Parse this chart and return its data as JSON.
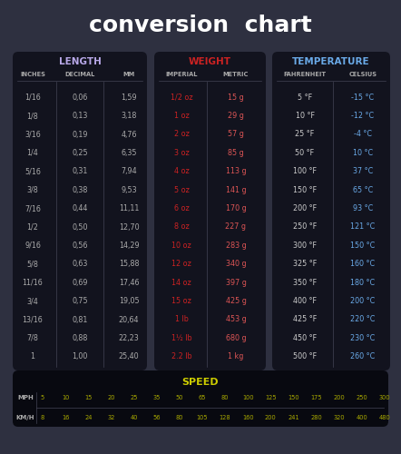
{
  "title": "conversion  chart",
  "bg_color": "#2e3040",
  "panel_color": "#12131e",
  "title_color": "#ffffff",
  "title_fontsize": 18,
  "length_title": "LENGTH",
  "length_title_color": "#b8a8e8",
  "length_cols": [
    "INCHES",
    "DECIMAL",
    "MM"
  ],
  "length_data": [
    [
      "1/16",
      "0,06",
      "1,59"
    ],
    [
      "1/8",
      "0,13",
      "3,18"
    ],
    [
      "3/16",
      "0,19",
      "4,76"
    ],
    [
      "1/4",
      "0,25",
      "6,35"
    ],
    [
      "5/16",
      "0,31",
      "7,94"
    ],
    [
      "3/8",
      "0,38",
      "9,53"
    ],
    [
      "7/16",
      "0,44",
      "11,11"
    ],
    [
      "1/2",
      "0,50",
      "12,70"
    ],
    [
      "9/16",
      "0,56",
      "14,29"
    ],
    [
      "5/8",
      "0,63",
      "15,88"
    ],
    [
      "11/16",
      "0,69",
      "17,46"
    ],
    [
      "3/4",
      "0,75",
      "19,05"
    ],
    [
      "13/16",
      "0,81",
      "20,64"
    ],
    [
      "7/8",
      "0,88",
      "22,23"
    ],
    [
      "1",
      "1,00",
      "25,40"
    ]
  ],
  "weight_title": "WEIGHT",
  "weight_title_color": "#cc2222",
  "weight_cols": [
    "IMPERIAL",
    "METRIC"
  ],
  "weight_imperial_color": "#cc2222",
  "weight_metric_color": "#cc3333",
  "weight_metric_bright": "#dd5555",
  "weight_data": [
    [
      "1/2 oz",
      "15 g"
    ],
    [
      "1 oz",
      "29 g"
    ],
    [
      "2 oz",
      "57 g"
    ],
    [
      "3 oz",
      "85 g"
    ],
    [
      "4 oz",
      "113 g"
    ],
    [
      "5 oz",
      "141 g"
    ],
    [
      "6 oz",
      "170 g"
    ],
    [
      "8 oz",
      "227 g"
    ],
    [
      "10 oz",
      "283 g"
    ],
    [
      "12 oz",
      "340 g"
    ],
    [
      "14 oz",
      "397 g"
    ],
    [
      "15 oz",
      "425 g"
    ],
    [
      "1 lb",
      "453 g"
    ],
    [
      "1½ lb",
      "680 g"
    ],
    [
      "2.2 lb",
      "1 kg"
    ]
  ],
  "temp_title": "TEMPERATURE",
  "temp_title_color": "#6aaae8",
  "temp_cols": [
    "FAHRENHEIT",
    "CELSIUS"
  ],
  "temp_fahr_color": "#cccccc",
  "temp_cel_color": "#6aaae8",
  "temp_data": [
    [
      "5 °F",
      "-15 °C"
    ],
    [
      "10 °F",
      "-12 °C"
    ],
    [
      "25 °F",
      "-4 °C"
    ],
    [
      "50 °F",
      "10 °C"
    ],
    [
      "100 °F",
      "37 °C"
    ],
    [
      "150 °F",
      "65 °C"
    ],
    [
      "200 °F",
      "93 °C"
    ],
    [
      "250 °F",
      "121 °C"
    ],
    [
      "300 °F",
      "150 °C"
    ],
    [
      "325 °F",
      "160 °C"
    ],
    [
      "350 °F",
      "180 °C"
    ],
    [
      "400 °F",
      "200 °C"
    ],
    [
      "425 °F",
      "220 °C"
    ],
    [
      "450 °F",
      "230 °C"
    ],
    [
      "500 °F",
      "260 °C"
    ]
  ],
  "speed_title": "SPEED",
  "speed_title_color": "#cccc00",
  "speed_bg": "#080910",
  "speed_mph_label": "MPH",
  "speed_kmh_label": "KM/H",
  "speed_mph": [
    "5",
    "10",
    "15",
    "20",
    "25",
    "35",
    "50",
    "65",
    "80",
    "100",
    "125",
    "150",
    "175",
    "200",
    "250",
    "300"
  ],
  "speed_kmh": [
    "8",
    "16",
    "24",
    "32",
    "40",
    "56",
    "80",
    "105",
    "128",
    "160",
    "200",
    "241",
    "280",
    "320",
    "400",
    "480"
  ],
  "speed_data_color": "#aaaa00",
  "speed_label_color": "#aaaaaa",
  "data_color": "#aaaaaa",
  "row_fontsize": 5.8,
  "hdr_fontsize": 4.8,
  "divider_color": "#444455"
}
